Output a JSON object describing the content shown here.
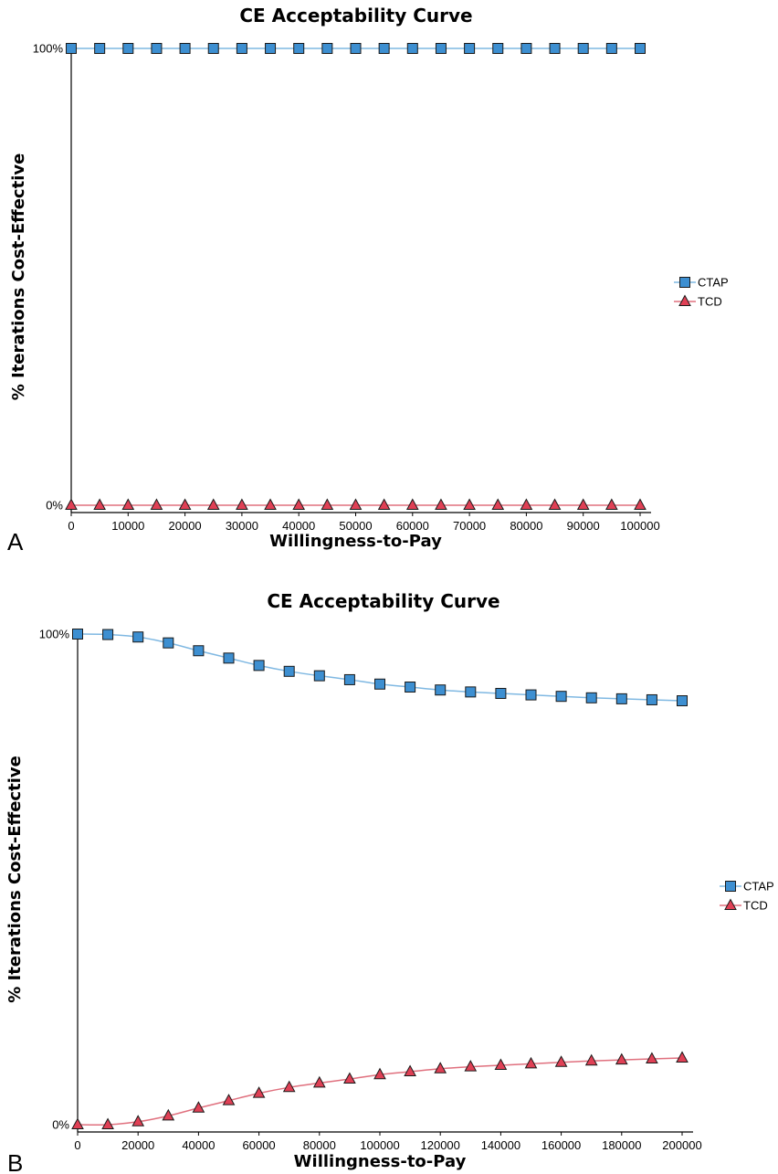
{
  "colors": {
    "ctap_fill": "#3d8fd1",
    "ctap_line": "#7fb8e2",
    "tcd_fill": "#e04055",
    "tcd_line": "#e0707e",
    "axis": "#000000"
  },
  "icons": {
    "ctap_marker": "square",
    "tcd_marker": "triangle"
  },
  "chart_data": [
    {
      "panel_letter": "A",
      "type": "line",
      "title": "CE Acceptability Curve",
      "xlabel": "Willingness-to-Pay",
      "ylabel": "% Iterations Cost-Effective",
      "xlim": [
        0,
        100000
      ],
      "ylim": [
        0,
        100
      ],
      "x_ticks": [
        "0",
        "10000",
        "20000",
        "30000",
        "40000",
        "50000",
        "60000",
        "70000",
        "80000",
        "90000",
        "100000"
      ],
      "y_ticks": [
        "0%",
        "100%"
      ],
      "grid": false,
      "legend_position": "right",
      "x": [
        0,
        5000,
        10000,
        15000,
        20000,
        25000,
        30000,
        35000,
        40000,
        45000,
        50000,
        55000,
        60000,
        65000,
        70000,
        75000,
        80000,
        85000,
        90000,
        95000,
        100000
      ],
      "series": [
        {
          "name": "CTAP",
          "values": [
            100,
            100,
            100,
            100,
            100,
            100,
            100,
            100,
            100,
            100,
            100,
            100,
            100,
            100,
            100,
            100,
            100,
            100,
            100,
            100,
            100
          ]
        },
        {
          "name": "TCD",
          "values": [
            0,
            0,
            0,
            0,
            0,
            0,
            0,
            0,
            0,
            0,
            0,
            0,
            0,
            0,
            0,
            0,
            0,
            0,
            0,
            0,
            0
          ]
        }
      ]
    },
    {
      "panel_letter": "B",
      "type": "line",
      "title": "CE Acceptability Curve",
      "xlabel": "Willingness-to-Pay",
      "ylabel": "% Iterations Cost-Effective",
      "xlim": [
        0,
        200000
      ],
      "ylim": [
        0,
        100
      ],
      "x_ticks": [
        "0",
        "20000",
        "40000",
        "60000",
        "80000",
        "100000",
        "120000",
        "140000",
        "160000",
        "180000",
        "200000"
      ],
      "y_ticks": [
        "0%",
        "100%"
      ],
      "grid": false,
      "legend_position": "right",
      "x": [
        0,
        10000,
        20000,
        30000,
        40000,
        50000,
        60000,
        70000,
        80000,
        90000,
        100000,
        110000,
        120000,
        130000,
        140000,
        150000,
        160000,
        170000,
        180000,
        190000,
        200000
      ],
      "series": [
        {
          "name": "CTAP",
          "values": [
            100,
            99.9,
            99.4,
            98.2,
            96.6,
            95.1,
            93.6,
            92.4,
            91.5,
            90.7,
            89.8,
            89.2,
            88.6,
            88.2,
            87.9,
            87.6,
            87.3,
            87.0,
            86.8,
            86.6,
            86.4
          ]
        },
        {
          "name": "TCD",
          "values": [
            0,
            0,
            0.6,
            1.8,
            3.4,
            4.9,
            6.4,
            7.6,
            8.5,
            9.3,
            10.2,
            10.8,
            11.4,
            11.8,
            12.1,
            12.4,
            12.7,
            13.0,
            13.2,
            13.4,
            13.6
          ]
        }
      ]
    }
  ]
}
